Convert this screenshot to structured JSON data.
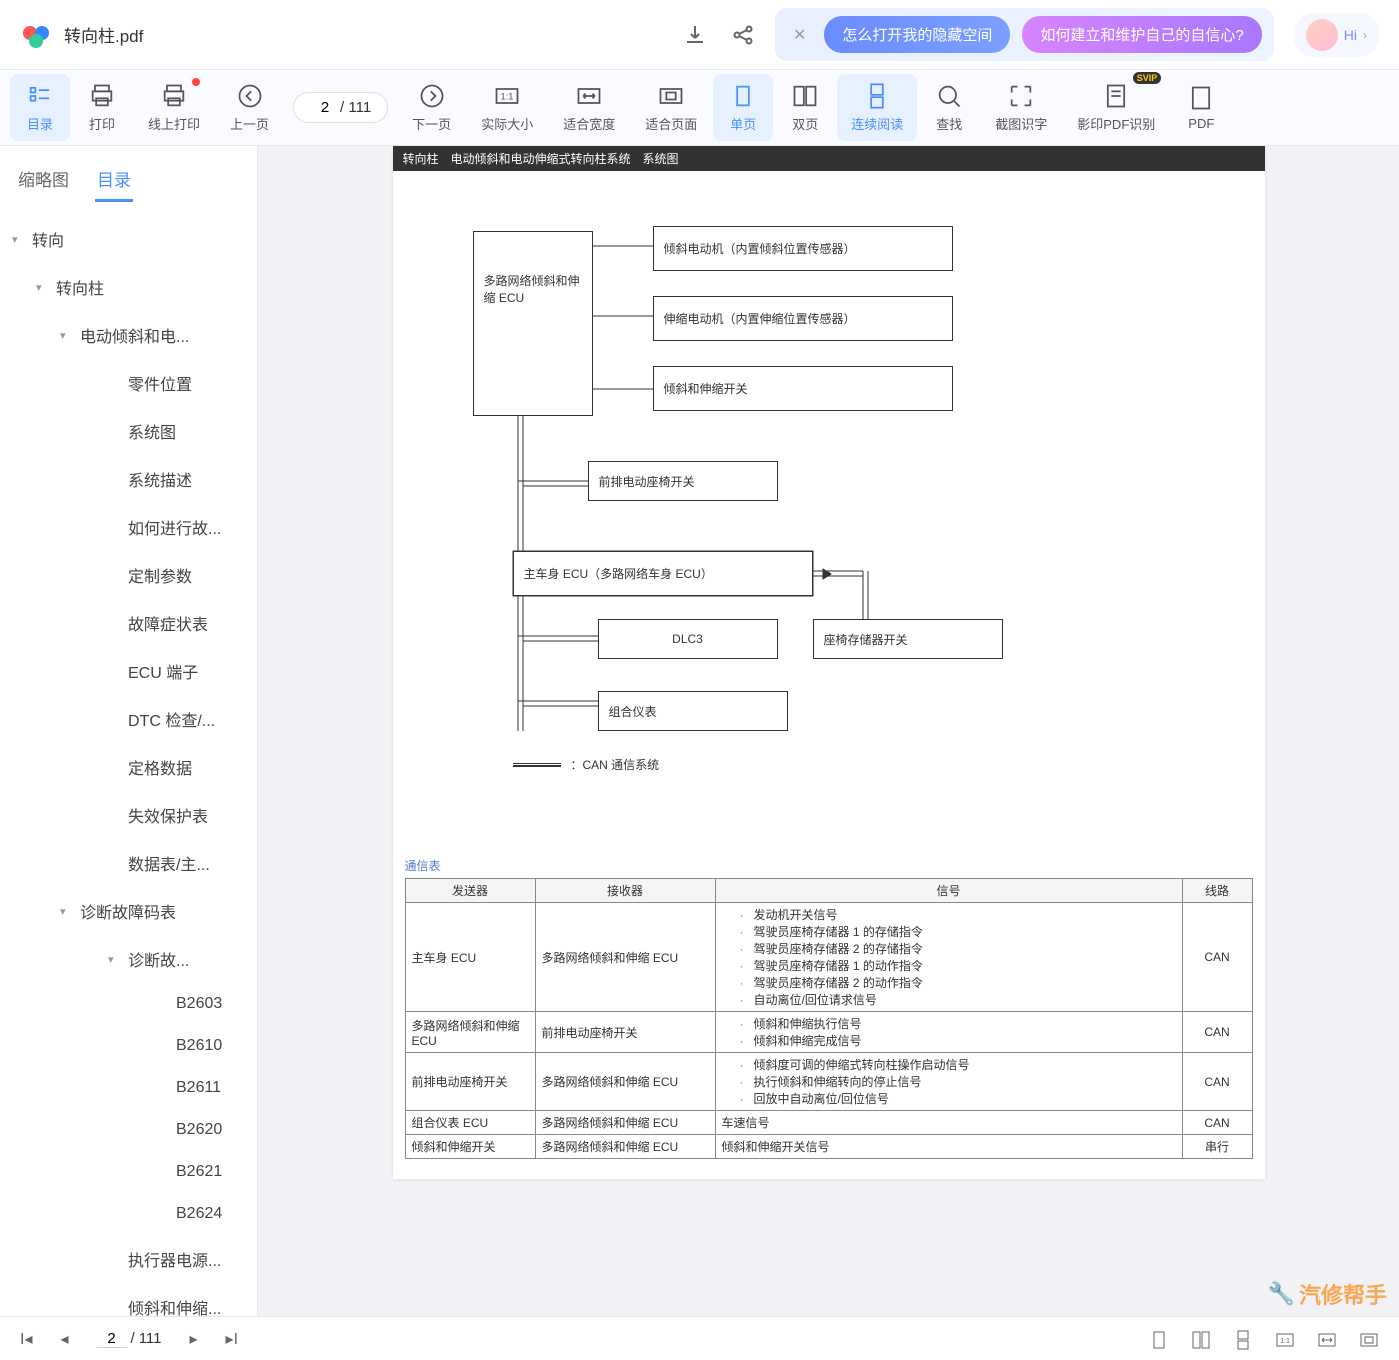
{
  "file": {
    "name": "转向柱.pdf"
  },
  "titlebar": {
    "pills": {
      "p1": "怎么打开我的隐藏空间",
      "p2": "如何建立和维护自己的自信心?"
    },
    "hi": "Hi"
  },
  "toolbar": {
    "items": [
      {
        "id": "toc",
        "label": "目录",
        "active": true
      },
      {
        "id": "print",
        "label": "打印"
      },
      {
        "id": "online-print",
        "label": "线上打印",
        "dot": true
      },
      {
        "id": "prev",
        "label": "上一页"
      },
      {
        "id": "next",
        "label": "下一页"
      },
      {
        "id": "actual",
        "label": "实际大小"
      },
      {
        "id": "fitw",
        "label": "适合宽度"
      },
      {
        "id": "fitp",
        "label": "适合页面"
      },
      {
        "id": "single",
        "label": "单页",
        "active": true
      },
      {
        "id": "double",
        "label": "双页"
      },
      {
        "id": "cont",
        "label": "连续阅读",
        "active": true
      },
      {
        "id": "find",
        "label": "查找"
      },
      {
        "id": "ocr",
        "label": "截图识字"
      },
      {
        "id": "shadow",
        "label": "影印PDF识别",
        "svip": true
      },
      {
        "id": "pdf",
        "label": "PDF"
      }
    ],
    "page": {
      "current": "2",
      "total": "111"
    }
  },
  "sidebar": {
    "tabs": {
      "thumb": "缩略图",
      "toc": "目录"
    },
    "tree": [
      {
        "lvl": 0,
        "caret": true,
        "label": "转向"
      },
      {
        "lvl": 1,
        "caret": true,
        "label": "转向柱"
      },
      {
        "lvl": 2,
        "caret": true,
        "label": "电动倾斜和电..."
      },
      {
        "lvl": 3,
        "label": "零件位置"
      },
      {
        "lvl": 3,
        "label": "系统图"
      },
      {
        "lvl": 3,
        "label": "系统描述"
      },
      {
        "lvl": 3,
        "label": "如何进行故..."
      },
      {
        "lvl": 3,
        "label": "定制参数"
      },
      {
        "lvl": 3,
        "label": "故障症状表"
      },
      {
        "lvl": 3,
        "label": "ECU 端子"
      },
      {
        "lvl": 3,
        "label": "DTC 检查/..."
      },
      {
        "lvl": 3,
        "label": "定格数据"
      },
      {
        "lvl": 3,
        "label": "失效保护表"
      },
      {
        "lvl": 3,
        "label": "数据表/主..."
      },
      {
        "lvl": 2,
        "caret": true,
        "label": "诊断故障码表"
      },
      {
        "lvl": 3,
        "caret": true,
        "label": "诊断故..."
      },
      {
        "lvl": 4,
        "label": "B2603"
      },
      {
        "lvl": 4,
        "label": "B2610"
      },
      {
        "lvl": 4,
        "label": "B2611"
      },
      {
        "lvl": 4,
        "label": "B2620"
      },
      {
        "lvl": 4,
        "label": "B2621"
      },
      {
        "lvl": 4,
        "label": "B2624"
      },
      {
        "lvl": 3,
        "label": "执行器电源..."
      },
      {
        "lvl": 3,
        "label": "倾斜和伸缩..."
      }
    ]
  },
  "doc": {
    "header": "转向柱　电动倾斜和电动伸缩式转向柱系统　系统图",
    "boxes": {
      "ecu1": "多路网络倾斜和伸缩 ECU",
      "motor1": "倾斜电动机（内置倾斜位置传感器）",
      "motor2": "伸缩电动机（内置伸缩位置传感器）",
      "sw1": "倾斜和伸缩开关",
      "seatSw": "前排电动座椅开关",
      "mainEcu": "主车身 ECU（多路网络车身 ECU）",
      "dlc3": "DLC3",
      "memSw": "座椅存储器开关",
      "meter": "组合仪表"
    },
    "legend": "：CAN 通信系统",
    "commTitle": "通信表",
    "commHeaders": {
      "sender": "发送器",
      "receiver": "接收器",
      "signal": "信号",
      "line": "线路"
    },
    "commRows": [
      {
        "sender": "主车身 ECU",
        "receiver": "多路网络倾斜和伸缩 ECU",
        "signals": [
          "发动机开关信号",
          "驾驶员座椅存储器 1 的存储指令",
          "驾驶员座椅存储器 2 的存储指令",
          "驾驶员座椅存储器 1 的动作指令",
          "驾驶员座椅存储器 2 的动作指令",
          "自动离位/回位请求信号"
        ],
        "line": "CAN"
      },
      {
        "sender": "多路网络倾斜和伸缩 ECU",
        "receiver": "前排电动座椅开关",
        "signals": [
          "倾斜和伸缩执行信号",
          "倾斜和伸缩完成信号"
        ],
        "line": "CAN"
      },
      {
        "sender": "前排电动座椅开关",
        "receiver": "多路网络倾斜和伸缩 ECU",
        "signals": [
          "倾斜度可调的伸缩式转向柱操作启动信号",
          "执行倾斜和伸缩转向的停止信号",
          "回放中自动离位/回位信号"
        ],
        "line": "CAN"
      },
      {
        "sender": "组合仪表 ECU",
        "receiver": "多路网络倾斜和伸缩 ECU",
        "signals": [
          "车速信号"
        ],
        "line": "CAN",
        "single": true
      },
      {
        "sender": "倾斜和伸缩开关",
        "receiver": "多路网络倾斜和伸缩 ECU",
        "signals": [
          "倾斜和伸缩开关信号"
        ],
        "line": "串行",
        "single": true
      }
    ]
  },
  "statusbar": {
    "page": {
      "current": "2",
      "total": "111"
    }
  },
  "watermark": "汽修帮手",
  "colors": {
    "accent": "#4a90ff",
    "toolbarActive": "#e6f0ff",
    "pillBlue": "#6b8cff",
    "pillPurple": "#c878ff"
  }
}
